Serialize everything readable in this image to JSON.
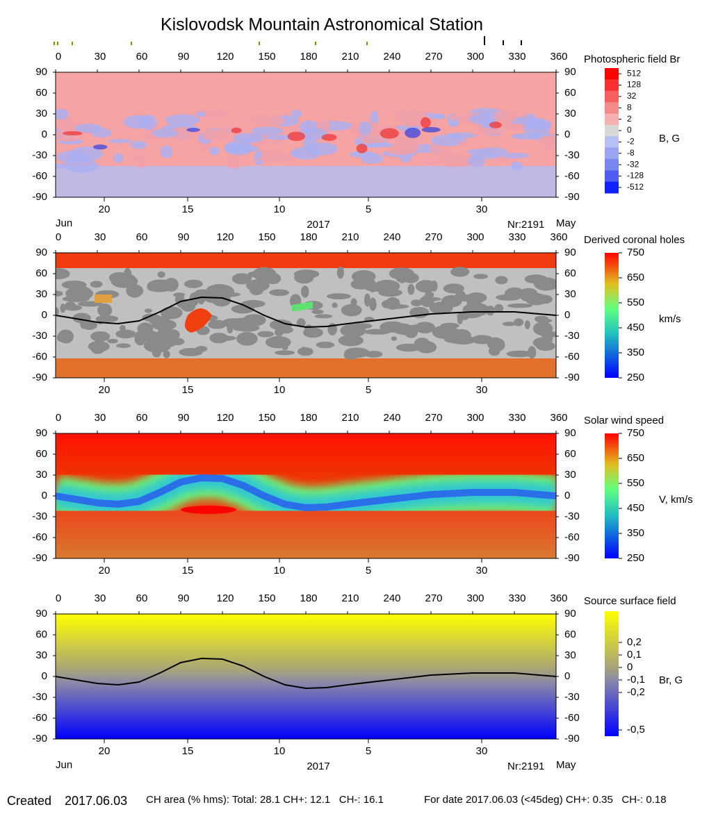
{
  "title": "Kislovodsk Mountain Astronomical Station",
  "chart_data": [
    {
      "type": "heatmap",
      "colormap": "bwr",
      "title": "Photospheric field Br",
      "colorbar_label": "B, G",
      "xlim": [
        0,
        360
      ],
      "ylim": [
        -90,
        90
      ],
      "xticks": [
        0,
        30,
        60,
        90,
        120,
        150,
        180,
        210,
        240,
        270,
        300,
        330,
        360
      ],
      "yticks": [
        -90,
        -60,
        -30,
        0,
        30,
        60,
        90
      ],
      "date_ticks": [
        {
          "value": 35,
          "label": "20"
        },
        {
          "value": 95,
          "label": "15"
        },
        {
          "value": 161,
          "label": "10"
        },
        {
          "value": 225,
          "label": "5"
        },
        {
          "value": 306.5,
          "label": "30"
        }
      ],
      "colorbar_ticks": [
        512,
        128,
        32,
        8,
        2,
        0,
        -2,
        -8,
        -32,
        -128,
        -512
      ],
      "month_left": "Jun",
      "year": "2017",
      "rotation": "Nr:2191",
      "month_right": "May"
    },
    {
      "type": "heatmap",
      "colormap": "coronal_holes",
      "title": "Derived coronal holes",
      "colorbar_label": "km/s",
      "xlim": [
        0,
        360
      ],
      "ylim": [
        -90,
        90
      ],
      "xticks": [
        0,
        30,
        60,
        90,
        120,
        150,
        180,
        210,
        240,
        270,
        300,
        330,
        360
      ],
      "yticks": [
        -90,
        -60,
        -30,
        0,
        30,
        60,
        90
      ],
      "date_ticks": [
        {
          "value": 35,
          "label": "20"
        },
        {
          "value": 95,
          "label": "15"
        },
        {
          "value": 161,
          "label": "10"
        },
        {
          "value": 225,
          "label": "5"
        },
        {
          "value": 306.5,
          "label": "30"
        }
      ],
      "clim": [
        250,
        750
      ],
      "colorbar_ticks": [
        750,
        650,
        550,
        450,
        350,
        250
      ],
      "series": [
        {
          "color": "#000000",
          "x": [
            0,
            30,
            45,
            60,
            75,
            90,
            105,
            120,
            135,
            150,
            165,
            180,
            195,
            210,
            240,
            270,
            300,
            330,
            360
          ],
          "values": [
            0,
            -10,
            -12,
            -8,
            5,
            20,
            26,
            25,
            15,
            0,
            -12,
            -17,
            -16,
            -12,
            -5,
            2,
            5,
            5,
            0
          ]
        }
      ]
    },
    {
      "type": "heatmap",
      "colormap": "jet",
      "title": "Solar wind speed",
      "colorbar_label": "V, km/s",
      "xlim": [
        0,
        360
      ],
      "ylim": [
        -90,
        90
      ],
      "xticks": [
        0,
        30,
        60,
        90,
        120,
        150,
        180,
        210,
        240,
        270,
        300,
        330,
        360
      ],
      "yticks": [
        -90,
        -60,
        -30,
        0,
        30,
        60,
        90
      ],
      "date_ticks": [
        {
          "value": 35,
          "label": "20"
        },
        {
          "value": 95,
          "label": "15"
        },
        {
          "value": 161,
          "label": "10"
        },
        {
          "value": 225,
          "label": "5"
        },
        {
          "value": 306.5,
          "label": "30"
        }
      ],
      "clim": [
        250,
        750
      ],
      "colorbar_ticks": [
        750,
        650,
        550,
        450,
        350,
        250
      ]
    },
    {
      "type": "heatmap",
      "colormap": "yellow_blue",
      "title": "Source surface field",
      "colorbar_label": "Br, G",
      "xlim": [
        0,
        360
      ],
      "ylim": [
        -90,
        90
      ],
      "xticks": [
        0,
        30,
        60,
        90,
        120,
        150,
        180,
        210,
        240,
        270,
        300,
        330,
        360
      ],
      "yticks": [
        -90,
        -60,
        -30,
        0,
        30,
        60,
        90
      ],
      "date_ticks": [
        {
          "value": 35,
          "label": "20"
        },
        {
          "value": 95,
          "label": "15"
        },
        {
          "value": 161,
          "label": "10"
        },
        {
          "value": 225,
          "label": "5"
        },
        {
          "value": 306.5,
          "label": "30"
        }
      ],
      "clim": [
        -0.55,
        0.45
      ],
      "colorbar_ticks": [
        {
          "value": 0.2,
          "label": "0,2"
        },
        {
          "value": 0.1,
          "label": "0,1"
        },
        0,
        {
          "value": -0.1,
          "label": "-0,1"
        },
        {
          "value": -0.2,
          "label": "-0,2"
        },
        {
          "value": -0.5,
          "label": "-0,5"
        }
      ],
      "series": [
        {
          "color": "#000000",
          "x": [
            0,
            30,
            45,
            60,
            75,
            90,
            105,
            120,
            135,
            150,
            165,
            180,
            195,
            210,
            240,
            270,
            300,
            330,
            360
          ],
          "values": [
            0,
            -10,
            -12,
            -8,
            5,
            20,
            26,
            25,
            15,
            0,
            -12,
            -17,
            -16,
            -12,
            -5,
            2,
            5,
            5,
            0
          ]
        }
      ],
      "month_left": "Jun",
      "year": "2017",
      "rotation": "Nr:2191",
      "month_right": "May"
    }
  ],
  "footer": {
    "created_label": "Created",
    "created_date": "2017.06.03",
    "ch_area": "CH area (% hms): Total: 28.1 CH+: 12.1   CH-: 16.1",
    "for_date": "For date 2017.06.03 (<45deg) CH+: 0.35   CH-: 0.18"
  }
}
